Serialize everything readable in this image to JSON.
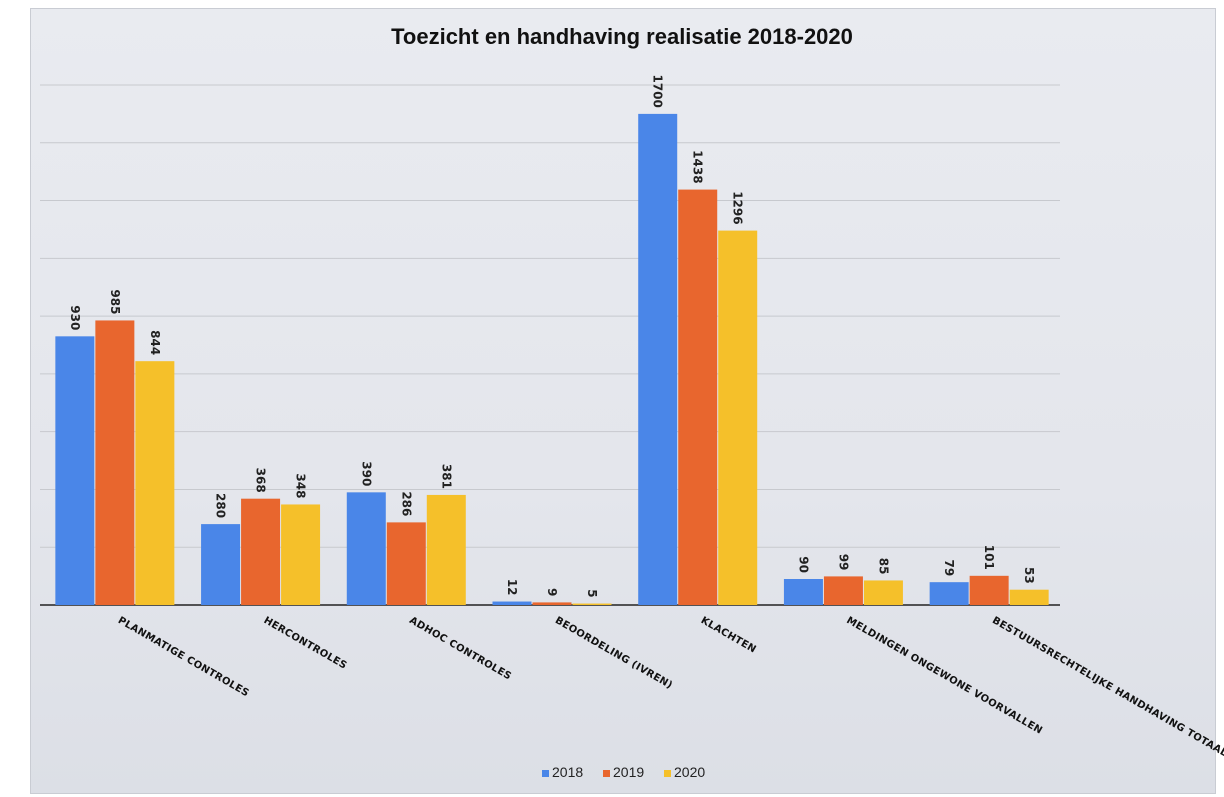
{
  "chart_data": {
    "type": "bar",
    "title": "Toezicht en handhaving realisatie 2018-2020",
    "categories": [
      "Planmatige controles",
      "Hercontroles",
      "Adhoc controles",
      "Beoordeling (IVRen)",
      "Klachten",
      "Meldingen ongewone voorvallen",
      "Bestuursrechtelijke handhaving totaal"
    ],
    "series": [
      {
        "name": "2018",
        "color": "#4a86e8",
        "values": [
          930,
          280,
          390,
          12,
          1700,
          90,
          79
        ]
      },
      {
        "name": "2019",
        "color": "#e8662e",
        "values": [
          985,
          368,
          286,
          9,
          1438,
          99,
          101
        ]
      },
      {
        "name": "2020",
        "color": "#f5c02a",
        "values": [
          844,
          348,
          381,
          5,
          1296,
          85,
          53
        ]
      }
    ],
    "ylim": [
      0,
      1800
    ],
    "grid": true,
    "legend": "bottom"
  }
}
